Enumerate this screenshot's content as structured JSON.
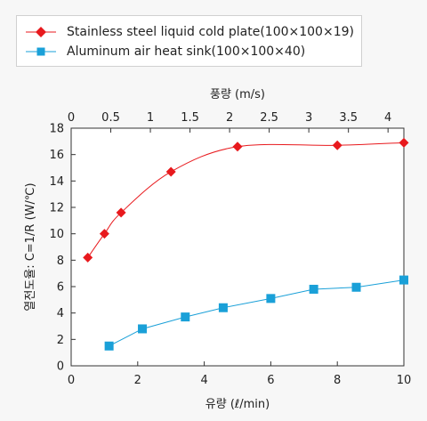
{
  "chart_data": {
    "type": "line",
    "series": [
      {
        "name": "Stainless steel liquid cold plate(100×100×19)",
        "color": "#e8191d",
        "marker": "diamond",
        "x": [
          0.5,
          1.0,
          1.5,
          3.0,
          5.0,
          8.0,
          10.0
        ],
        "y": [
          8.2,
          10.0,
          11.6,
          14.7,
          16.6,
          16.7,
          16.9
        ]
      },
      {
        "name": "Aluminum air heat sink(100×100×40)",
        "color": "#1aa0d8",
        "marker": "square",
        "x": [
          1.14,
          2.14,
          3.43,
          4.57,
          6.0,
          7.29,
          8.57,
          10.0
        ],
        "y": [
          1.5,
          2.8,
          3.7,
          4.4,
          5.1,
          5.8,
          5.95,
          6.5
        ]
      }
    ],
    "xlabel": "유량 (ℓ/min)",
    "x2label": "풍량 (m/s)",
    "ylabel": "열전도율: C=1/R (W/℃)",
    "xlim": [
      0,
      10
    ],
    "ylim": [
      0,
      18
    ],
    "xticks": [
      "0",
      "2",
      "4",
      "6",
      "8",
      "10"
    ],
    "x2ticks": [
      "0",
      "0.5",
      "1",
      "1.5",
      "2",
      "2.5",
      "3",
      "3.5",
      "4"
    ],
    "yticks": [
      "0",
      "2",
      "4",
      "6",
      "8",
      "10",
      "12",
      "14",
      "16",
      "18"
    ],
    "grid": false,
    "legend_position": "top-left"
  }
}
